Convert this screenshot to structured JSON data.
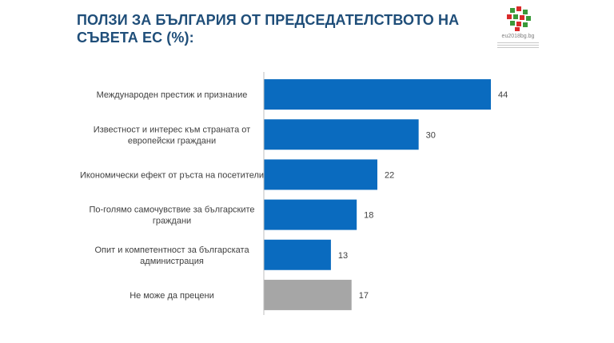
{
  "title": "ПОЛЗИ ЗА БЪЛГАРИЯ ОТ ПРЕДСЕДАТЕЛСТВОТО НА СЪВЕТА ЕС (%):",
  "logo": {
    "text": "eu2018bg.bg",
    "icon": "bulgarian-presidency-logo"
  },
  "colors": {
    "title": "#1f4e79",
    "bar": "#0a6bbf",
    "bar_other": "#a6a6a6",
    "axis": "#bfbfbf"
  },
  "chart_data": {
    "type": "bar",
    "orientation": "horizontal",
    "title": "ПОЛЗИ ЗА БЪЛГАРИЯ ОТ ПРЕДСЕДАТЕЛСТВОТО НА СЪВЕТА ЕС (%):",
    "categories": [
      [
        "Международен престиж и признание"
      ],
      [
        "Известност и интерес към страната от",
        "европейски граждани"
      ],
      [
        "Икономически ефект от ръста на посетители"
      ],
      [
        "По-голямо самочувствие за българските",
        "граждани"
      ],
      [
        "Опит и компетентност за българската",
        "администрация"
      ],
      [
        "Не може да прецени"
      ]
    ],
    "values": [
      44,
      30,
      22,
      18,
      13,
      17
    ],
    "bar_colors": [
      "#0a6bbf",
      "#0a6bbf",
      "#0a6bbf",
      "#0a6bbf",
      "#0a6bbf",
      "#a6a6a6"
    ],
    "xlim": [
      0,
      50
    ],
    "grid": false,
    "legend": "none",
    "data_labels": true
  }
}
